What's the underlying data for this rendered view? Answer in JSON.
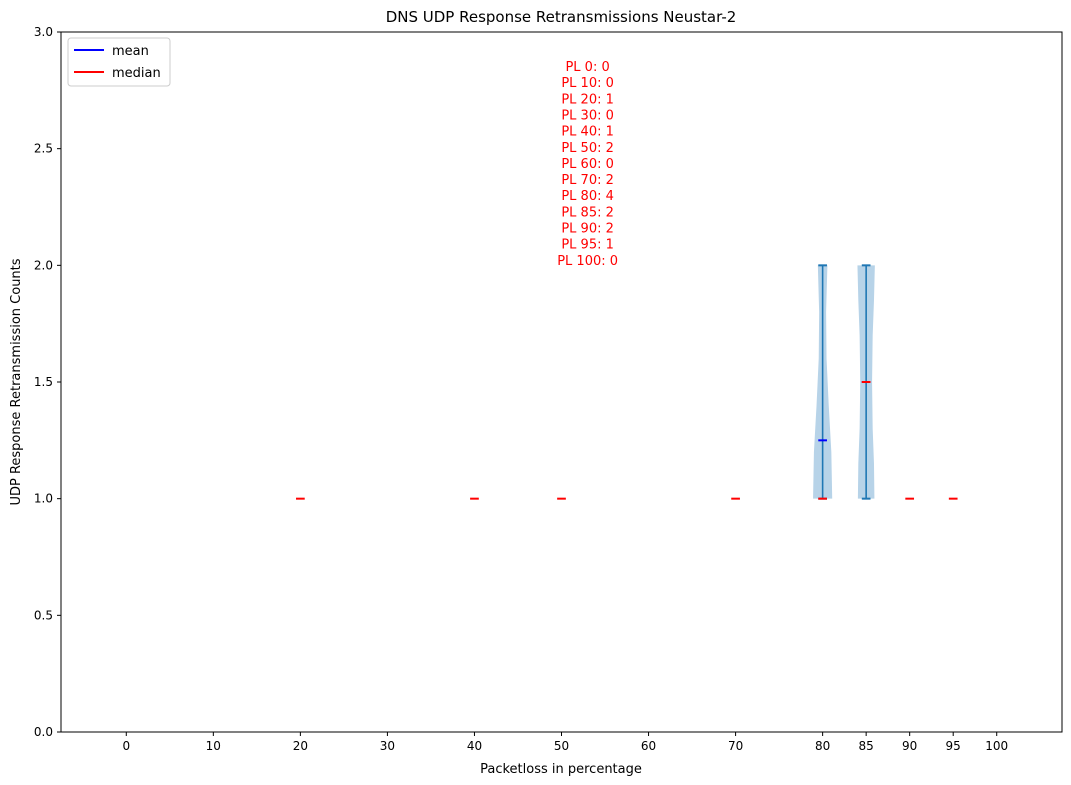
{
  "chart_data": {
    "type": "violin",
    "title": "DNS UDP Response Retransmissions Neustar-2",
    "xlabel": "Packetloss in percentage",
    "ylabel": "UDP Response Retransmission Counts",
    "categories": [
      "0",
      "10",
      "20",
      "30",
      "40",
      "50",
      "60",
      "70",
      "80",
      "85",
      "90",
      "95",
      "100"
    ],
    "x_positions": [
      0,
      10,
      20,
      30,
      40,
      50,
      60,
      70,
      80,
      85,
      90,
      95,
      100
    ],
    "xlim": [
      -7.5,
      107.5
    ],
    "ylim": [
      0,
      3
    ],
    "yticks": [
      "0.0",
      "0.5",
      "1.0",
      "1.5",
      "2.0",
      "2.5",
      "3.0"
    ],
    "ytick_values": [
      0,
      0.5,
      1,
      1.5,
      2,
      2.5,
      3
    ],
    "legend": {
      "position": "top-left",
      "entries": [
        {
          "label": "mean",
          "color": "#0000ff"
        },
        {
          "label": "median",
          "color": "#ff0000"
        }
      ]
    },
    "colors": {
      "violin_fill": "#b7d3e8",
      "violin_lines": "#1f77b4",
      "mean": "#0000ff",
      "median": "#ff0000",
      "annotation": "#ff0000"
    },
    "single_point_medians": [
      {
        "x": 20,
        "value": 1
      },
      {
        "x": 40,
        "value": 1
      },
      {
        "x": 50,
        "value": 1
      },
      {
        "x": 70,
        "value": 1
      },
      {
        "x": 90,
        "value": 1
      },
      {
        "x": 95,
        "value": 1
      }
    ],
    "violins": [
      {
        "x": 80,
        "min": 1,
        "max": 2,
        "mean": 1.25,
        "median": 1,
        "density": [
          [
            1.0,
            1.1
          ],
          [
            1.2,
            1.0
          ],
          [
            1.4,
            0.7
          ],
          [
            1.6,
            0.45
          ],
          [
            1.8,
            0.4
          ],
          [
            2.0,
            0.55
          ]
        ]
      },
      {
        "x": 85,
        "min": 1,
        "max": 2,
        "mean": 1.5,
        "median": 1.5,
        "density": [
          [
            1.0,
            0.95
          ],
          [
            1.15,
            0.9
          ],
          [
            1.3,
            0.75
          ],
          [
            1.5,
            0.68
          ],
          [
            1.7,
            0.75
          ],
          [
            1.85,
            0.9
          ],
          [
            2.0,
            1.0
          ]
        ]
      }
    ],
    "annotation": {
      "x": 53,
      "lines": [
        "PL 0: 0",
        "PL 10: 0",
        "PL 20: 1",
        "PL 30: 0",
        "PL 40: 1",
        "PL 50: 2",
        "PL 60: 0",
        "PL 70: 2",
        "PL 80: 4",
        "PL 85: 2",
        "PL 90: 2",
        "PL 95: 1",
        "PL 100: 0"
      ]
    }
  }
}
